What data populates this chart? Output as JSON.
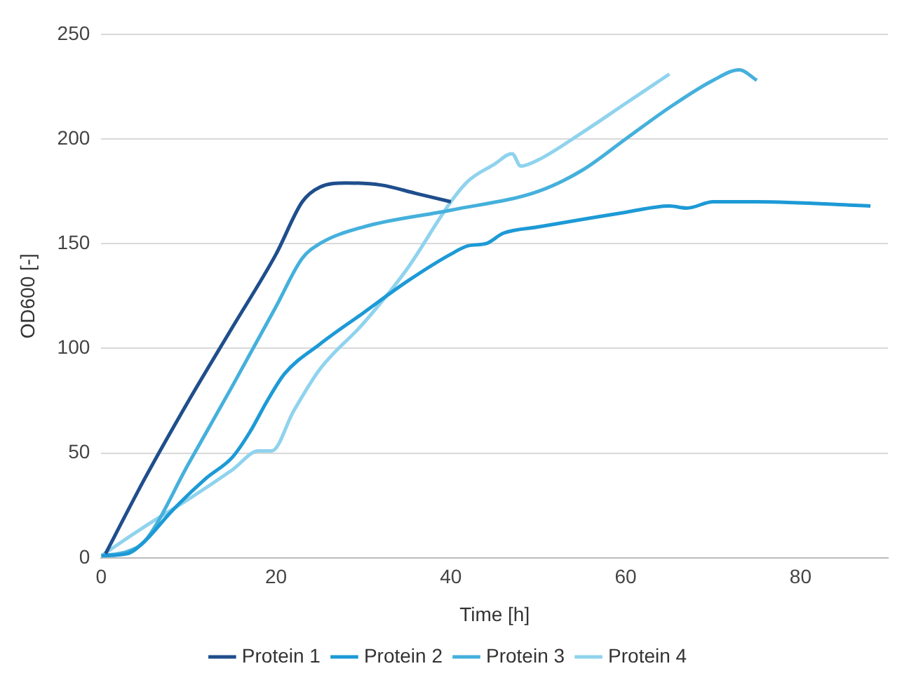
{
  "chart_data": {
    "type": "line",
    "xlabel": "Time [h]",
    "ylabel": "OD600 [-]",
    "xlim": [
      0,
      90
    ],
    "xticks": [
      0,
      20,
      40,
      60,
      80
    ],
    "ylim": [
      0,
      250
    ],
    "yticks": [
      0,
      50,
      100,
      150,
      200,
      250
    ],
    "grid": "y",
    "legend": "bottom",
    "marker": "none",
    "line_style": "solid",
    "series": [
      {
        "name": "Protein 1",
        "color": "#1f4e8c",
        "x": [
          0.5,
          5,
          10,
          15,
          20,
          23,
          25,
          28,
          32,
          36,
          40
        ],
        "values": [
          2,
          38,
          75,
          110,
          145,
          170,
          177,
          179,
          178,
          174,
          170
        ]
      },
      {
        "name": "Protein 2",
        "color": "#1d9ad6",
        "x": [
          0,
          3,
          5,
          8,
          12,
          15,
          17,
          19,
          21,
          25,
          30,
          35,
          40,
          42,
          44,
          46,
          50,
          60,
          65,
          67,
          70,
          75,
          88
        ],
        "values": [
          1,
          2,
          8,
          22,
          38,
          48,
          60,
          75,
          88,
          102,
          117,
          132,
          145,
          149,
          150,
          155,
          158,
          165,
          168,
          167,
          170,
          170,
          168
        ]
      },
      {
        "name": "Protein 3",
        "color": "#45b0dc",
        "x": [
          0,
          3,
          5,
          10,
          15,
          20,
          23,
          25,
          30,
          40,
          50,
          55,
          60,
          65,
          70,
          73,
          75
        ],
        "values": [
          1,
          3,
          8,
          45,
          82,
          120,
          143,
          150,
          158,
          166,
          175,
          185,
          200,
          215,
          228,
          233,
          228
        ]
      },
      {
        "name": "Protein 4",
        "color": "#8fd3ee",
        "x": [
          0,
          5,
          10,
          15,
          18,
          19.5,
          22,
          25,
          30,
          35,
          40,
          42,
          45,
          47,
          48,
          50,
          55,
          60,
          65
        ],
        "values": [
          1,
          15,
          28,
          42,
          51,
          51,
          70,
          90,
          112,
          138,
          170,
          180,
          188,
          193,
          187,
          190,
          203,
          217,
          231
        ]
      }
    ]
  }
}
